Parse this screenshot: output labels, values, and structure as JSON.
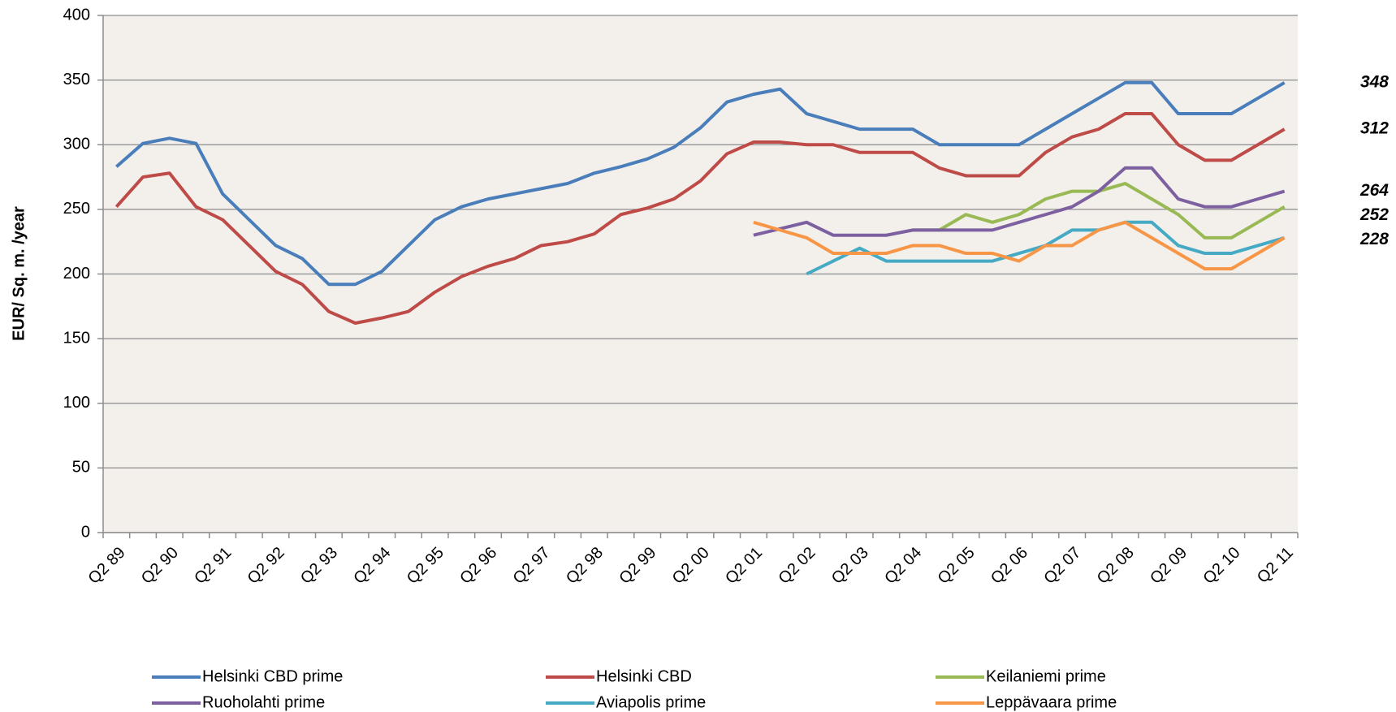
{
  "chart_data": {
    "type": "line",
    "y_label": "EUR/ Sq. m. /year",
    "categories": [
      "Q2 89",
      null,
      "Q2 90",
      null,
      "Q2 91",
      null,
      "Q2 92",
      null,
      "Q2 93",
      null,
      "Q2 94",
      null,
      "Q2 95",
      null,
      "Q2 96",
      null,
      "Q2 97",
      null,
      "Q2 98",
      null,
      "Q2 99",
      null,
      "Q2 00",
      null,
      "Q2 01",
      null,
      "Q2 02",
      null,
      "Q2 03",
      null,
      "Q2 04",
      null,
      "Q2 05",
      null,
      "Q2 06",
      null,
      "Q2 07",
      null,
      "Q2 08",
      null,
      "Q2 09",
      null,
      "Q2 10",
      null,
      "Q2 11"
    ],
    "ylim": [
      0,
      400
    ],
    "yticks": [
      0,
      50,
      100,
      150,
      200,
      250,
      300,
      350,
      400
    ],
    "grid": true,
    "legend": "bottom",
    "series": [
      {
        "name": "Helsinki CBD prime",
        "color": "#4a7ebb",
        "values": [
          283,
          301,
          305,
          301,
          262,
          242,
          222,
          212,
          192,
          192,
          202,
          222,
          242,
          252,
          258,
          262,
          266,
          270,
          278,
          283,
          289,
          298,
          313,
          333,
          339,
          343,
          324,
          318,
          312,
          312,
          312,
          300,
          300,
          300,
          300,
          312,
          324,
          336,
          348,
          348,
          324,
          324,
          324,
          336,
          348
        ]
      },
      {
        "name": "Helsinki CBD",
        "color": "#be4b48",
        "values": [
          252,
          275,
          278,
          252,
          242,
          222,
          202,
          192,
          171,
          162,
          166,
          171,
          186,
          198,
          206,
          212,
          222,
          225,
          231,
          246,
          251,
          258,
          272,
          293,
          302,
          302,
          300,
          300,
          294,
          294,
          294,
          282,
          276,
          276,
          276,
          294,
          306,
          312,
          324,
          324,
          300,
          288,
          288,
          300,
          312
        ]
      },
      {
        "name": "Keilaniemi prime",
        "color": "#98b954",
        "values": [
          null,
          null,
          null,
          null,
          null,
          null,
          null,
          null,
          null,
          null,
          null,
          null,
          null,
          null,
          null,
          null,
          null,
          null,
          null,
          null,
          null,
          null,
          null,
          null,
          null,
          null,
          null,
          null,
          null,
          null,
          234,
          234,
          246,
          240,
          246,
          258,
          264,
          264,
          270,
          258,
          246,
          228,
          228,
          240,
          252
        ]
      },
      {
        "name": "Ruoholahti prime",
        "color": "#7d60a0",
        "values": [
          null,
          null,
          null,
          null,
          null,
          null,
          null,
          null,
          null,
          null,
          null,
          null,
          null,
          null,
          null,
          null,
          null,
          null,
          null,
          null,
          null,
          null,
          null,
          null,
          230,
          235,
          240,
          230,
          230,
          230,
          234,
          234,
          234,
          234,
          240,
          246,
          252,
          264,
          282,
          282,
          258,
          252,
          252,
          258,
          264
        ]
      },
      {
        "name": "Aviapolis prime",
        "color": "#46aac5",
        "values": [
          null,
          null,
          null,
          null,
          null,
          null,
          null,
          null,
          null,
          null,
          null,
          null,
          null,
          null,
          null,
          null,
          null,
          null,
          null,
          null,
          null,
          null,
          null,
          null,
          null,
          null,
          200,
          210,
          220,
          210,
          210,
          210,
          210,
          210,
          216,
          222,
          234,
          234,
          240,
          240,
          222,
          216,
          216,
          222,
          228
        ]
      },
      {
        "name": "Leppävaara prime",
        "color": "#f79646",
        "values": [
          null,
          null,
          null,
          null,
          null,
          null,
          null,
          null,
          null,
          null,
          null,
          null,
          null,
          null,
          null,
          null,
          null,
          null,
          null,
          null,
          null,
          null,
          null,
          null,
          240,
          234,
          228,
          216,
          216,
          216,
          222,
          222,
          216,
          216,
          210,
          222,
          222,
          234,
          240,
          228,
          216,
          204,
          204,
          216,
          228
        ]
      }
    ],
    "annotations": [
      348,
      312,
      264,
      252,
      228
    ]
  }
}
